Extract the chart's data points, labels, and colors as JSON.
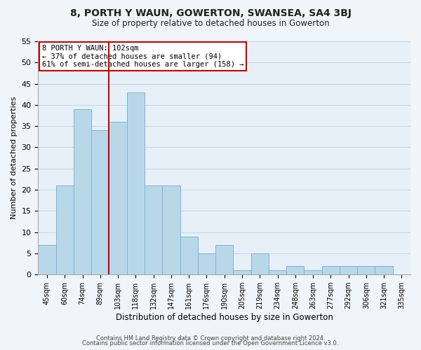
{
  "title": "8, PORTH Y WAUN, GOWERTON, SWANSEA, SA4 3BJ",
  "subtitle": "Size of property relative to detached houses in Gowerton",
  "xlabel": "Distribution of detached houses by size in Gowerton",
  "ylabel": "Number of detached properties",
  "bin_labels": [
    "45sqm",
    "60sqm",
    "74sqm",
    "89sqm",
    "103sqm",
    "118sqm",
    "132sqm",
    "147sqm",
    "161sqm",
    "176sqm",
    "190sqm",
    "205sqm",
    "219sqm",
    "234sqm",
    "248sqm",
    "263sqm",
    "277sqm",
    "292sqm",
    "306sqm",
    "321sqm",
    "335sqm"
  ],
  "bar_heights": [
    7,
    21,
    39,
    34,
    36,
    43,
    21,
    21,
    9,
    5,
    7,
    1,
    5,
    1,
    2,
    1,
    2,
    2,
    2,
    2,
    0
  ],
  "bar_color": "#b8d8ea",
  "bar_edge_color": "#7ab5d4",
  "vline_color": "#cc0000",
  "annotation_line1": "8 PORTH Y WAUN: 102sqm",
  "annotation_line2": "← 37% of detached houses are smaller (94)",
  "annotation_line3": "61% of semi-detached houses are larger (158) →",
  "annotation_box_color": "#ffffff",
  "annotation_box_edge": "#cc0000",
  "ylim": [
    0,
    55
  ],
  "yticks": [
    0,
    5,
    10,
    15,
    20,
    25,
    30,
    35,
    40,
    45,
    50,
    55
  ],
  "footer_line1": "Contains HM Land Registry data © Crown copyright and database right 2024.",
  "footer_line2": "Contains public sector information licensed under the Open Government Licence v3.0.",
  "background_color": "#f0f5f9",
  "plot_background_color": "#e8f0f7",
  "grid_color": "#c5d5e5"
}
